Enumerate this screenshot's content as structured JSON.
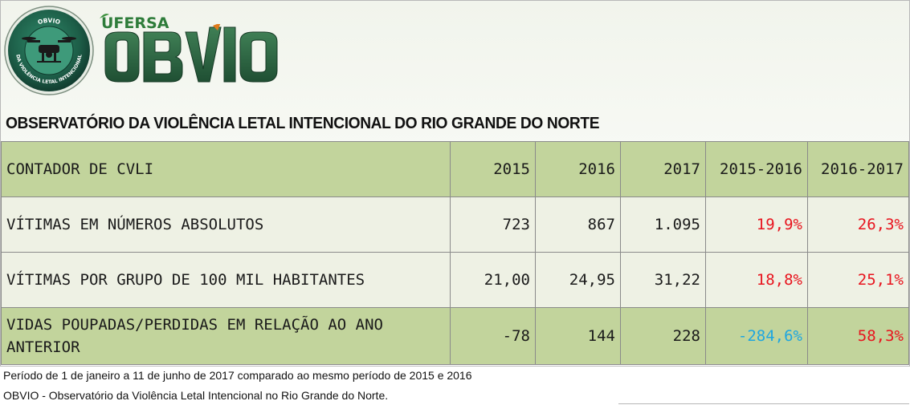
{
  "header": {
    "university": "UFERSA",
    "brand": "OBVIO",
    "seal_text": "OBVIO · OBSERVATÓRIO DA VIOLÊNCIA LETAL INTENCIONAL",
    "subtitle": "OBSERVATÓRIO DA VIOLÊNCIA LETAL INTENCIONAL DO RIO GRANDE DO NORTE"
  },
  "table": {
    "columns": [
      "CONTADOR DE CVLI",
      "2015",
      "2016",
      "2017",
      "2015-2016",
      "2016-2017"
    ],
    "rows": [
      [
        "VÍTIMAS EM NÚMEROS ABSOLUTOS",
        "723",
        "867",
        "1.095",
        "19,9%",
        "26,3%"
      ],
      [
        "VÍTIMAS POR GRUPO DE 100 MIL HABITANTES",
        "21,00",
        "24,95",
        "31,22",
        "18,8%",
        "25,1%"
      ],
      [
        "VIDAS POUPADAS/PERDIDAS EM RELAÇÃO AO ANO ANTERIOR",
        "-78",
        "144",
        "228",
        "-284,6%",
        "58,3%"
      ]
    ]
  },
  "footer": {
    "note": "Período de 1 de janeiro a 11 de junho de 2017 comparado ao mesmo período de 2015 e 2016",
    "source": "OBVIO - Observatório da Violência Letal Intencional no Rio Grande do Norte."
  },
  "colors": {
    "header_row": "#c2d49c",
    "body_row": "#eef1e4",
    "increase": "#e8141e",
    "decrease": "#1ea6e0",
    "brand_green": "#2e6b3e"
  }
}
